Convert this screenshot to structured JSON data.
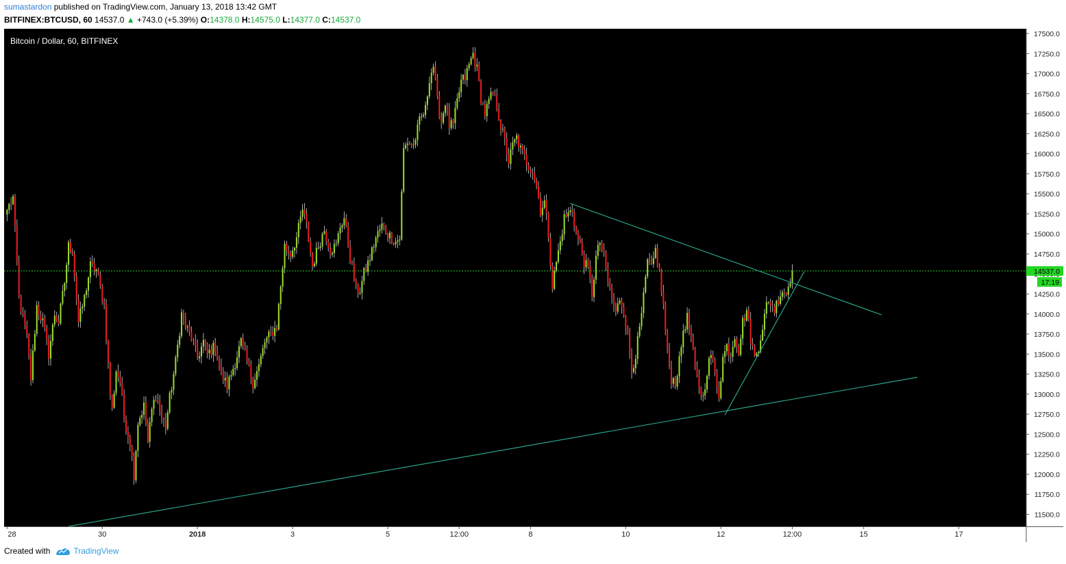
{
  "header": {
    "user": "sumastardon",
    "published_text": "published on TradingView.com, January 13, 2018 13:42 GMT",
    "symbol": "BITFINEX:BTCUSD, 60",
    "last": "14537.0",
    "change": "+743.0 (+5.39%)",
    "o_label": "O:",
    "o": "14378.0",
    "h_label": "H:",
    "h": "14575.0",
    "l_label": "L:",
    "l": "14377.0",
    "c_label": "C:",
    "c": "14537.0"
  },
  "footer": {
    "created_with": "Created with",
    "brand": "TradingView"
  },
  "chart_data": {
    "type": "candlestick",
    "title": "Bitcoin / Dollar, 60, BITFINEX",
    "ylim": [
      11350,
      17560
    ],
    "y_ticks": [
      11500,
      11750,
      12000,
      12250,
      12500,
      12750,
      13000,
      13250,
      13500,
      13750,
      14000,
      14250,
      14500,
      14750,
      15000,
      15250,
      15500,
      15750,
      16000,
      16250,
      16500,
      16750,
      17000,
      17250,
      17500
    ],
    "x_ticks": [
      {
        "bar": 0,
        "label": "28"
      },
      {
        "bar": 48,
        "label": "30"
      },
      {
        "bar": 96,
        "label": "2018"
      },
      {
        "bar": 144,
        "label": "3"
      },
      {
        "bar": 192,
        "label": "5"
      },
      {
        "bar": 228,
        "label": "12:00"
      },
      {
        "bar": 264,
        "label": "8"
      },
      {
        "bar": 312,
        "label": "10"
      },
      {
        "bar": 360,
        "label": "12"
      },
      {
        "bar": 396,
        "label": "12:00"
      },
      {
        "bar": 432,
        "label": "15"
      },
      {
        "bar": 480,
        "label": "17"
      }
    ],
    "x_range_bars": [
      -1.5,
      514
    ],
    "current_price": 14537.0,
    "current_price_label": "14537.0",
    "countdown_label": "17:19",
    "up_color": "#9bdf2a",
    "down_color": "#ee1c1c",
    "price_line_color": "#23d623",
    "trendline_color": "#2aa38a",
    "anchors": [
      [
        0,
        15300
      ],
      [
        3,
        15450
      ],
      [
        6,
        14200
      ],
      [
        10,
        13700
      ],
      [
        12,
        13200
      ],
      [
        15,
        14100
      ],
      [
        18,
        13900
      ],
      [
        21,
        13500
      ],
      [
        24,
        14000
      ],
      [
        26,
        13900
      ],
      [
        29,
        14400
      ],
      [
        31,
        14850
      ],
      [
        33,
        14800
      ],
      [
        36,
        13900
      ],
      [
        39,
        14200
      ],
      [
        42,
        14600
      ],
      [
        45,
        14550
      ],
      [
        49,
        14100
      ],
      [
        52,
        13000
      ],
      [
        53,
        12800
      ],
      [
        55,
        13300
      ],
      [
        57,
        13150
      ],
      [
        59,
        12700
      ],
      [
        62,
        12400
      ],
      [
        64,
        12000
      ],
      [
        66,
        12650
      ],
      [
        69,
        12850
      ],
      [
        71,
        12400
      ],
      [
        73,
        12800
      ],
      [
        75,
        13000
      ],
      [
        78,
        12700
      ],
      [
        80,
        12600
      ],
      [
        82,
        12950
      ],
      [
        85,
        13400
      ],
      [
        88,
        14000
      ],
      [
        90,
        13850
      ],
      [
        93,
        13700
      ],
      [
        96,
        13450
      ],
      [
        99,
        13650
      ],
      [
        101,
        13500
      ],
      [
        105,
        13600
      ],
      [
        108,
        13250
      ],
      [
        111,
        13100
      ],
      [
        115,
        13400
      ],
      [
        118,
        13650
      ],
      [
        121,
        13400
      ],
      [
        124,
        13150
      ],
      [
        127,
        13350
      ],
      [
        130,
        13650
      ],
      [
        133,
        13750
      ],
      [
        136,
        13850
      ],
      [
        140,
        14850
      ],
      [
        143,
        14750
      ],
      [
        146,
        14950
      ],
      [
        149,
        15300
      ],
      [
        151,
        15100
      ],
      [
        154,
        14600
      ],
      [
        157,
        14850
      ],
      [
        160,
        15050
      ],
      [
        163,
        14800
      ],
      [
        166,
        14850
      ],
      [
        168,
        15100
      ],
      [
        170,
        15200
      ],
      [
        173,
        14700
      ],
      [
        176,
        14300
      ],
      [
        178,
        14300
      ],
      [
        180,
        14500
      ],
      [
        183,
        14700
      ],
      [
        186,
        14950
      ],
      [
        189,
        15100
      ],
      [
        192,
        15000
      ],
      [
        196,
        14900
      ],
      [
        198,
        14950
      ],
      [
        200,
        16050
      ],
      [
        202,
        16150
      ],
      [
        205,
        16100
      ],
      [
        208,
        16400
      ],
      [
        211,
        16550
      ],
      [
        213,
        16950
      ],
      [
        215,
        17100
      ],
      [
        217,
        16650
      ],
      [
        219,
        16400
      ],
      [
        221,
        16650
      ],
      [
        223,
        16350
      ],
      [
        225,
        16350
      ],
      [
        227,
        16650
      ],
      [
        229,
        16900
      ],
      [
        231,
        16950
      ],
      [
        233,
        17100
      ],
      [
        235,
        17250
      ],
      [
        237,
        17050
      ],
      [
        239,
        16700
      ],
      [
        241,
        16500
      ],
      [
        243,
        16650
      ],
      [
        245,
        16750
      ],
      [
        247,
        16600
      ],
      [
        249,
        16350
      ],
      [
        251,
        16150
      ],
      [
        253,
        15900
      ],
      [
        255,
        16100
      ],
      [
        257,
        16200
      ],
      [
        259,
        16050
      ],
      [
        261,
        15950
      ],
      [
        263,
        15850
      ],
      [
        265,
        15800
      ],
      [
        267,
        15600
      ],
      [
        269,
        15300
      ],
      [
        271,
        15400
      ],
      [
        273,
        15000
      ],
      [
        275,
        14350
      ],
      [
        277,
        14650
      ],
      [
        279,
        14900
      ],
      [
        281,
        15200
      ],
      [
        283,
        15250
      ],
      [
        285,
        15300
      ],
      [
        287,
        15000
      ],
      [
        289,
        14850
      ],
      [
        291,
        14650
      ],
      [
        293,
        14550
      ],
      [
        295,
        14250
      ],
      [
        297,
        14700
      ],
      [
        299,
        14900
      ],
      [
        301,
        14700
      ],
      [
        303,
        14400
      ],
      [
        305,
        14200
      ],
      [
        307,
        14000
      ],
      [
        309,
        14200
      ],
      [
        311,
        14050
      ],
      [
        313,
        13700
      ],
      [
        315,
        13300
      ],
      [
        317,
        13500
      ],
      [
        319,
        13800
      ],
      [
        321,
        14200
      ],
      [
        323,
        14650
      ],
      [
        325,
        14550
      ],
      [
        327,
        14800
      ],
      [
        329,
        14500
      ],
      [
        331,
        14100
      ],
      [
        333,
        13500
      ],
      [
        335,
        13200
      ],
      [
        337,
        13150
      ],
      [
        339,
        13400
      ],
      [
        341,
        13800
      ],
      [
        343,
        13950
      ],
      [
        345,
        13700
      ],
      [
        347,
        13300
      ],
      [
        349,
        13100
      ],
      [
        351,
        12950
      ],
      [
        353,
        13300
      ],
      [
        355,
        13500
      ],
      [
        357,
        13250
      ],
      [
        359,
        13000
      ],
      [
        361,
        13450
      ],
      [
        363,
        13600
      ],
      [
        365,
        13500
      ],
      [
        367,
        13750
      ],
      [
        369,
        13550
      ],
      [
        371,
        13900
      ],
      [
        373,
        14050
      ],
      [
        375,
        13700
      ],
      [
        377,
        13450
      ],
      [
        379,
        13600
      ],
      [
        381,
        13850
      ],
      [
        383,
        14100
      ],
      [
        385,
        14150
      ],
      [
        387,
        14050
      ],
      [
        389,
        14200
      ],
      [
        391,
        14300
      ],
      [
        393,
        14250
      ],
      [
        395,
        14450
      ],
      [
        396,
        14537
      ]
    ],
    "trendlines": [
      {
        "name": "descending resistance",
        "from": [
          284,
          15380
        ],
        "to": [
          441,
          13990
        ]
      },
      {
        "name": "ascending support",
        "from": [
          31,
          11350
        ],
        "to": [
          459,
          13210
        ]
      },
      {
        "name": "short-term support",
        "from": [
          362,
          12740
        ],
        "to": [
          402,
          14530
        ]
      }
    ]
  }
}
